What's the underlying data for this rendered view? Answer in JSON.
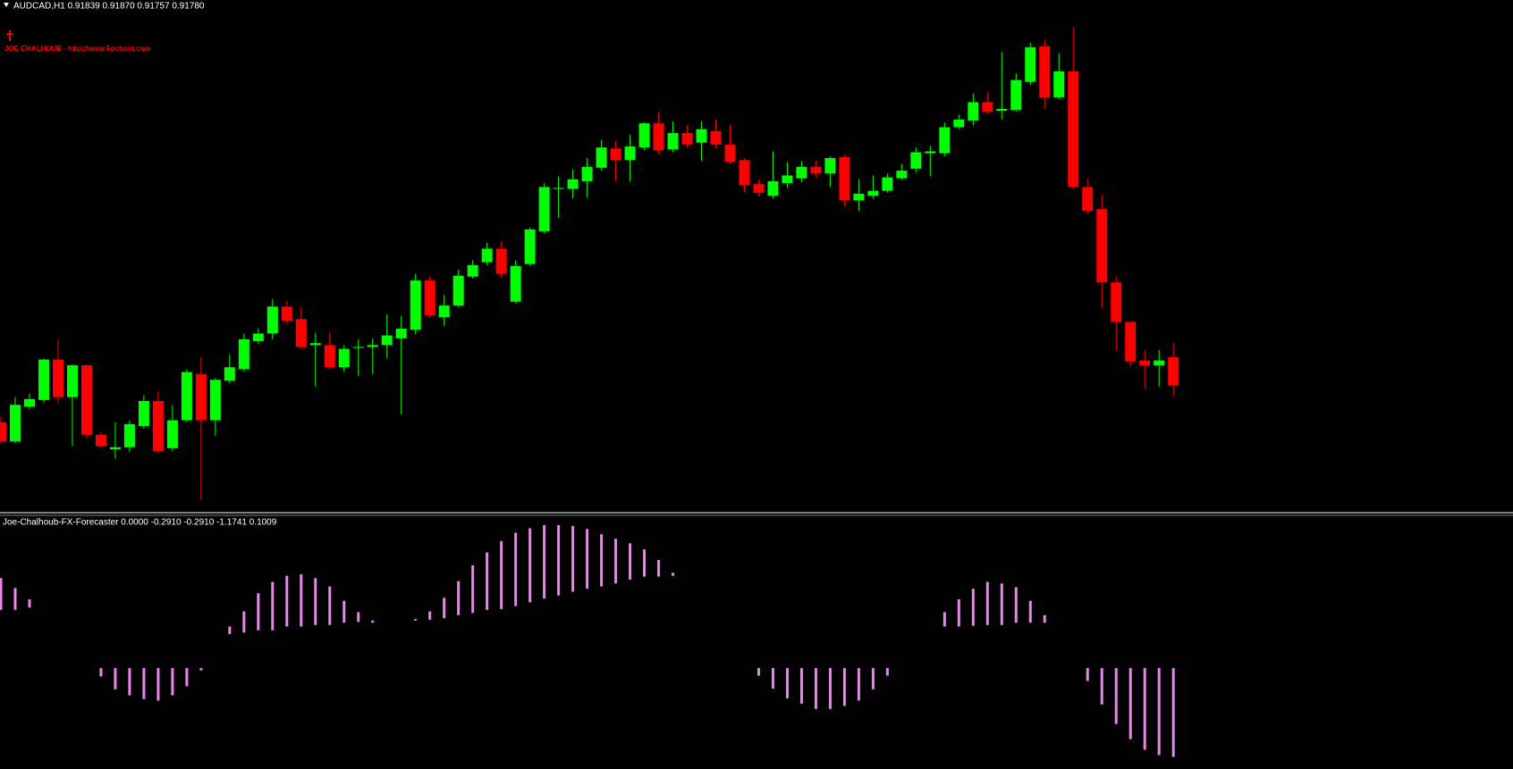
{
  "chart_data": [
    {
      "type": "candlestick",
      "title": "AUDCAD,H1  0.91839 0.91870 0.91757 0.91780",
      "annotation": "JOE CHALHOUB - http://www.Fpchost.com",
      "up_color": "#00ff00",
      "down_color": "#ff0000",
      "ylim": [
        0.9152,
        0.9258
      ],
      "open": [
        0.91704,
        0.91664,
        0.91736,
        0.9175,
        0.91834,
        0.91756,
        0.91822,
        0.91678,
        0.91648,
        0.91652,
        0.91696,
        0.91748,
        0.9165,
        0.91708,
        0.91804,
        0.91708,
        0.9179,
        0.91814,
        0.91872,
        0.91888,
        0.91944,
        0.91918,
        0.91864,
        0.91864,
        0.91818,
        0.91858,
        0.9186,
        0.91864,
        0.91878,
        0.91896,
        0.91998,
        0.91922,
        0.91946,
        0.92006,
        0.92036,
        0.92064,
        0.91954,
        0.92032,
        0.921,
        0.92188,
        0.92188,
        0.92204,
        0.92232,
        0.92272,
        0.92248,
        0.92274,
        0.92324,
        0.9227,
        0.92304,
        0.92284,
        0.92308,
        0.9228,
        0.92248,
        0.92198,
        0.92174,
        0.922,
        0.9221,
        0.92234,
        0.9222,
        0.92254,
        0.92164,
        0.92174,
        0.92184,
        0.9221,
        0.9223,
        0.92262,
        0.92262,
        0.92316,
        0.9233,
        0.92368,
        0.9235,
        0.92352,
        0.9241,
        0.92484,
        0.92378,
        0.92432,
        0.92192,
        0.92146,
        0.91994,
        0.91912,
        0.91832,
        0.91822,
        0.91839
      ],
      "high": [
        0.91716,
        0.91756,
        0.91764,
        0.91836,
        0.91876,
        0.91824,
        0.91824,
        0.91684,
        0.91704,
        0.91708,
        0.9176,
        0.91768,
        0.9174,
        0.91814,
        0.9184,
        0.91796,
        0.91844,
        0.91888,
        0.91898,
        0.9196,
        0.91956,
        0.91944,
        0.9189,
        0.9189,
        0.91864,
        0.91876,
        0.91878,
        0.91928,
        0.91924,
        0.92012,
        0.92008,
        0.91968,
        0.9202,
        0.9204,
        0.92076,
        0.9208,
        0.9204,
        0.92108,
        0.922,
        0.92214,
        0.92228,
        0.92252,
        0.9229,
        0.92288,
        0.923,
        0.92326,
        0.92348,
        0.92328,
        0.9232,
        0.92328,
        0.92332,
        0.9232,
        0.92252,
        0.92208,
        0.92266,
        0.92244,
        0.92246,
        0.92246,
        0.92256,
        0.9226,
        0.92208,
        0.92216,
        0.9222,
        0.9224,
        0.92274,
        0.92278,
        0.92326,
        0.92342,
        0.92386,
        0.92388,
        0.92472,
        0.92428,
        0.92492,
        0.92498,
        0.9247,
        0.92524,
        0.9221,
        0.92176,
        0.92006,
        0.91914,
        0.91854,
        0.91854,
        0.9187
      ],
      "low": [
        0.9166,
        0.9166,
        0.9173,
        0.91744,
        0.91744,
        0.91654,
        0.9167,
        0.9165,
        0.91628,
        0.91642,
        0.9169,
        0.9164,
        0.91644,
        0.91704,
        0.91544,
        0.91676,
        0.91784,
        0.91808,
        0.91866,
        0.91876,
        0.91908,
        0.91856,
        0.91778,
        0.91814,
        0.91808,
        0.918,
        0.91804,
        0.91836,
        0.9172,
        0.91886,
        0.9192,
        0.91904,
        0.91942,
        0.92002,
        0.9203,
        0.92004,
        0.9195,
        0.92028,
        0.92096,
        0.92128,
        0.92168,
        0.9217,
        0.92226,
        0.92204,
        0.92204,
        0.92268,
        0.9226,
        0.92264,
        0.92274,
        0.92246,
        0.92272,
        0.9224,
        0.92182,
        0.92172,
        0.92168,
        0.9219,
        0.92202,
        0.92212,
        0.92192,
        0.92152,
        0.92142,
        0.92168,
        0.9218,
        0.92206,
        0.92222,
        0.92214,
        0.92256,
        0.92312,
        0.9232,
        0.92344,
        0.92332,
        0.92348,
        0.92404,
        0.92354,
        0.92374,
        0.92188,
        0.92136,
        0.9194,
        0.91852,
        0.9182,
        0.91774,
        0.91778,
        0.91757
      ],
      "close": [
        0.91664,
        0.9174,
        0.91752,
        0.91834,
        0.91756,
        0.91822,
        0.91678,
        0.91654,
        0.91652,
        0.917,
        0.91748,
        0.91644,
        0.91708,
        0.91808,
        0.91708,
        0.91792,
        0.91818,
        0.91876,
        0.91888,
        0.91944,
        0.91914,
        0.9186,
        0.91868,
        0.91818,
        0.91856,
        0.9186,
        0.91864,
        0.91884,
        0.91898,
        0.91998,
        0.91926,
        0.91946,
        0.92008,
        0.9203,
        0.92064,
        0.92012,
        0.92028,
        0.92104,
        0.92192,
        0.9219,
        0.92208,
        0.92234,
        0.92274,
        0.92248,
        0.92276,
        0.92324,
        0.92268,
        0.92304,
        0.9228,
        0.92312,
        0.9228,
        0.92244,
        0.92196,
        0.9218,
        0.92204,
        0.92216,
        0.92234,
        0.9222,
        0.92252,
        0.92164,
        0.92178,
        0.92184,
        0.92212,
        0.92226,
        0.92264,
        0.92266,
        0.92316,
        0.92332,
        0.92368,
        0.92348,
        0.92354,
        0.92414,
        0.92482,
        0.92378,
        0.92432,
        0.92192,
        0.92142,
        0.91994,
        0.91912,
        0.9183,
        0.91822,
        0.91832,
        0.9178
      ]
    },
    {
      "type": "histogram",
      "title": "Joe-Chalhoub-FX-Forecaster 0.0000 -0.2910 -0.2910 -1.1741 0.1009",
      "color": "#ee82ee",
      "ylim": [
        -1.31,
        2.02
      ],
      "upper": [
        1.19,
        1.06,
        0.91,
        null,
        null,
        null,
        null,
        0,
        0,
        0,
        0,
        0,
        0,
        0,
        0,
        null,
        0.55,
        0.75,
        0.99,
        1.14,
        1.22,
        1.24,
        1.19,
        1.08,
        0.89,
        0.74,
        0.63,
        null,
        null,
        0.65,
        0.75,
        0.93,
        1.15,
        1.36,
        1.53,
        1.68,
        1.79,
        1.85,
        1.89,
        1.89,
        1.88,
        1.84,
        1.77,
        1.71,
        1.65,
        1.57,
        1.43,
        1.26,
        null,
        null,
        null,
        null,
        null,
        0,
        0,
        0,
        0,
        0,
        0,
        0,
        0,
        0,
        0,
        null,
        null,
        null,
        0.74,
        0.91,
        1.05,
        1.14,
        1.12,
        1.07,
        0.89,
        0.7,
        null,
        null,
        0,
        0,
        0,
        0,
        0,
        0,
        0
      ],
      "lower": [
        0.77,
        0.77,
        0.8,
        null,
        null,
        null,
        null,
        -0.11,
        -0.28,
        -0.36,
        -0.41,
        -0.43,
        -0.36,
        -0.24,
        -0.03,
        null,
        0.45,
        0.47,
        0.5,
        0.5,
        0.55,
        0.55,
        0.57,
        0.57,
        0.6,
        0.61,
        0.6,
        null,
        null,
        0.63,
        0.64,
        0.66,
        0.7,
        0.73,
        0.77,
        0.78,
        0.82,
        0.87,
        0.92,
        0.96,
        1.01,
        1.05,
        1.08,
        1.12,
        1.17,
        1.21,
        1.21,
        1.22,
        null,
        null,
        null,
        null,
        null,
        -0.1,
        -0.27,
        -0.4,
        -0.47,
        -0.54,
        -0.54,
        -0.5,
        -0.43,
        -0.28,
        -0.1,
        null,
        null,
        null,
        0.55,
        0.55,
        0.56,
        0.57,
        0.57,
        0.6,
        0.6,
        0.6,
        null,
        null,
        -0.17,
        -0.48,
        -0.74,
        -0.94,
        -1.08,
        -1.15,
        -1.1741
      ]
    }
  ]
}
